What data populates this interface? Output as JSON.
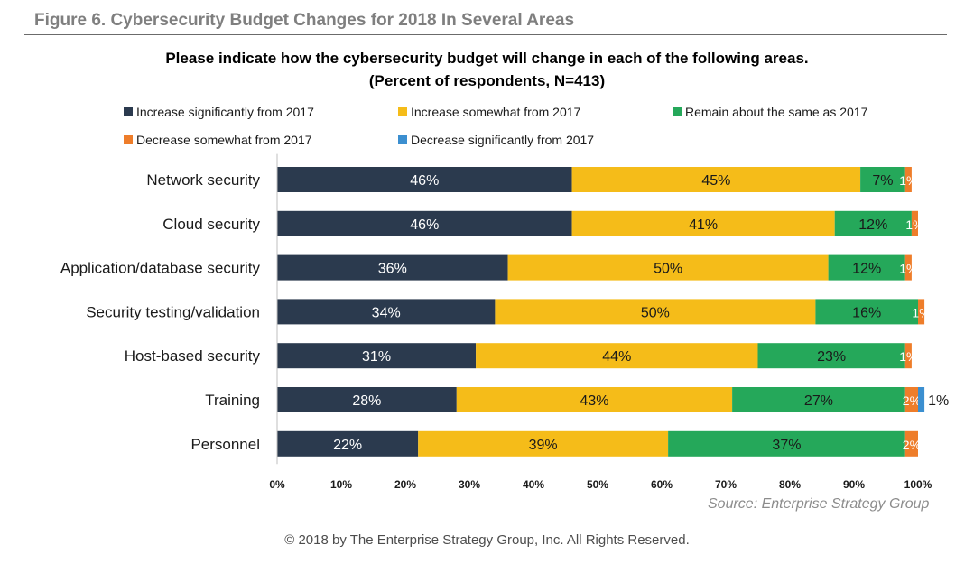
{
  "figure_header": "Figure 6.  Cybersecurity Budget Changes for 2018 In Several Areas",
  "source": "Source: Enterprise Strategy Group",
  "copyright": "© 2018 by The Enterprise Strategy Group, Inc. All Rights Reserved.",
  "chart_data": {
    "type": "bar",
    "orientation": "horizontal",
    "stacked": true,
    "title": "Please indicate how the cybersecurity budget will change in each of the following areas.",
    "subtitle": "(Percent of respondents, N=413)",
    "xlim": [
      0,
      100
    ],
    "x_ticks": [
      "0%",
      "10%",
      "20%",
      "30%",
      "40%",
      "50%",
      "60%",
      "70%",
      "80%",
      "90%",
      "100%"
    ],
    "categories": [
      "Network security",
      "Cloud security",
      "Application/database security",
      "Security testing/validation",
      "Host-based security",
      "Training",
      "Personnel"
    ],
    "series": [
      {
        "name": "Increase significantly from 2017",
        "color": "#2b3a4e",
        "label_color": "#ffffff",
        "values": [
          46,
          46,
          36,
          34,
          31,
          28,
          22
        ],
        "labels": [
          "46%",
          "46%",
          "36%",
          "34%",
          "31%",
          "28%",
          "22%"
        ]
      },
      {
        "name": "Increase somewhat from 2017",
        "color": "#f5bc19",
        "label_color": "#1a1a1a",
        "values": [
          45,
          41,
          50,
          50,
          44,
          43,
          39
        ],
        "labels": [
          "45%",
          "41%",
          "50%",
          "50%",
          "44%",
          "43%",
          "39%"
        ]
      },
      {
        "name": "Remain about the same as 2017",
        "color": "#25a85a",
        "label_color": "#1a1a1a",
        "values": [
          7,
          12,
          12,
          16,
          23,
          27,
          37
        ],
        "labels": [
          "7%",
          "12%",
          "12%",
          "16%",
          "23%",
          "27%",
          "37%"
        ]
      },
      {
        "name": "Decrease somewhat from 2017",
        "color": "#ee7d2a",
        "label_color": "#ffffff",
        "values": [
          1,
          1,
          1,
          1,
          1,
          2,
          2
        ],
        "labels": [
          "1%",
          "1%",
          "1%",
          "1%",
          "1%",
          "2%",
          "2%"
        ]
      },
      {
        "name": "Decrease significantly from 2017",
        "color": "#3b8fd0",
        "label_color": "#1a1a1a",
        "values": [
          0,
          0,
          0,
          0,
          0,
          1,
          0
        ],
        "labels": [
          "",
          "",
          "",
          "",
          "",
          "1%",
          ""
        ]
      }
    ],
    "legend_position": "top"
  }
}
